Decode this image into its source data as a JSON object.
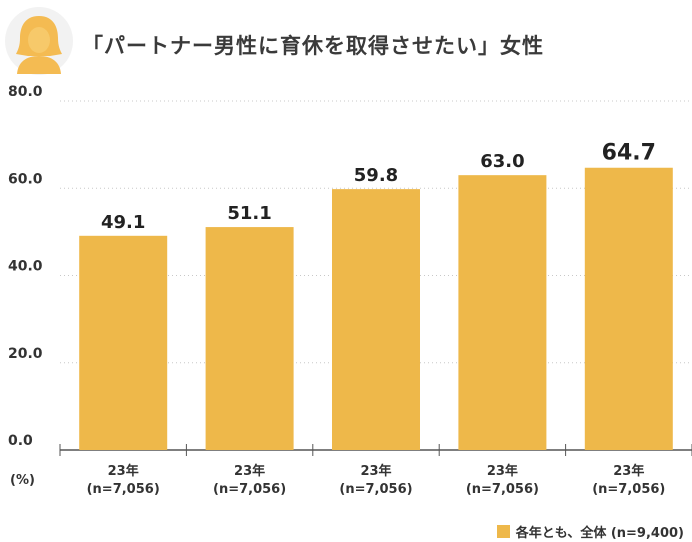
{
  "header": {
    "title": "「パートナー男性に育休を取得させたい」女性"
  },
  "colors": {
    "bar": "#eeb84a",
    "avatar": "#f4bb52",
    "avatar_bg": "#f2f2f2",
    "axis": "#555555",
    "grid": "#c8c8c8"
  },
  "chart_data": {
    "type": "bar",
    "categories": [
      "23年 (n=7,056)",
      "23年 (n=7,056)",
      "23年 (n=7,056)",
      "23年 (n=7,056)",
      "23年 (n=7,056)"
    ],
    "category_lines": [
      [
        "23年",
        "(n=7,056)"
      ],
      [
        "23年",
        "(n=7,056)"
      ],
      [
        "23年",
        "(n=7,056)"
      ],
      [
        "23年",
        "(n=7,056)"
      ],
      [
        "23年",
        "(n=7,056)"
      ]
    ],
    "values": [
      49.1,
      51.1,
      59.8,
      63.0,
      64.7
    ],
    "value_labels": [
      "49.1",
      "51.1",
      "59.8",
      "63.0",
      "64.7"
    ],
    "highlight_index": 4,
    "ylim": [
      0,
      80
    ],
    "yticks": [
      0,
      20,
      40,
      60,
      80
    ],
    "ytick_labels": [
      "0.0",
      "20.0",
      "40.0",
      "60.0",
      "80.0"
    ],
    "ylabel": "(%)",
    "grid": true,
    "legend_position": "bottom-right",
    "series": [
      {
        "name": "各年とも、全体 (n=9,400)",
        "values": [
          49.1,
          51.1,
          59.8,
          63.0,
          64.7
        ]
      }
    ]
  }
}
